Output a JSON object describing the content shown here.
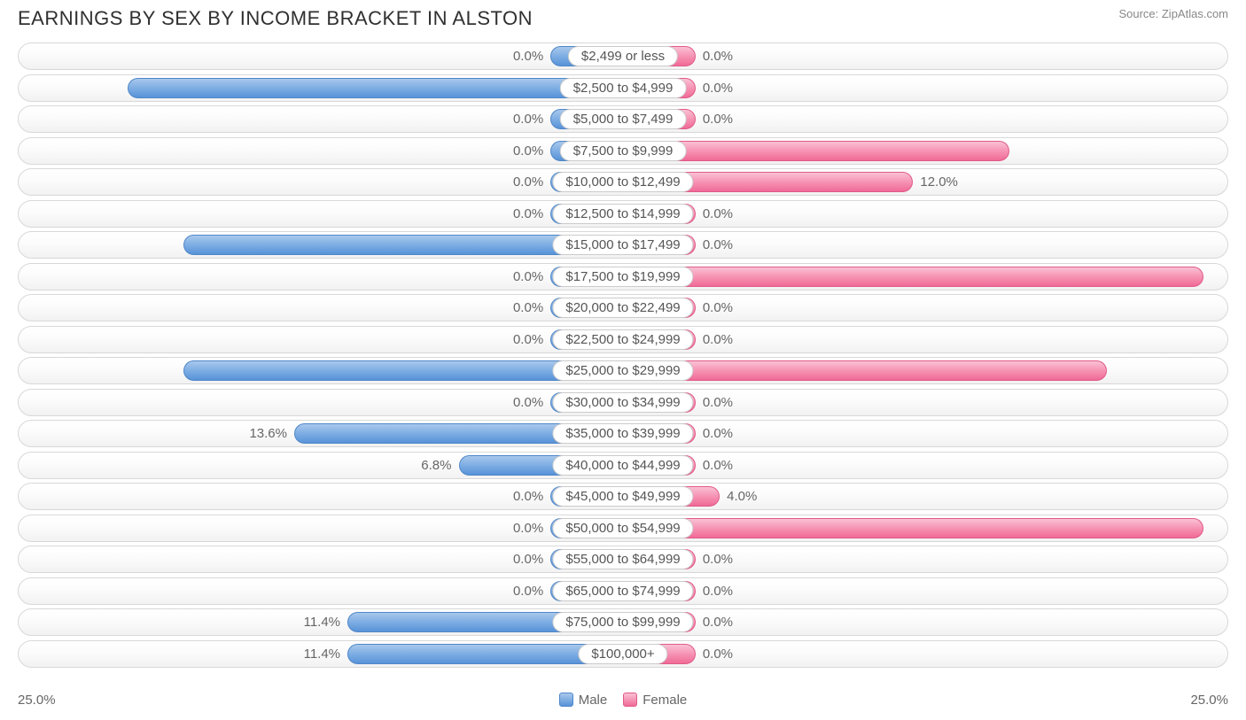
{
  "title": "EARNINGS BY SEX BY INCOME BRACKET IN ALSTON",
  "source": "Source: ZipAtlas.com",
  "axis_max": 25.0,
  "axis_max_label": "25.0%",
  "min_bar_percent": 3.0,
  "inside_threshold": 14.0,
  "colors": {
    "male_gradient": [
      "#a9c8ec",
      "#7dade3",
      "#5893d8"
    ],
    "male_border": "#4f87c8",
    "female_gradient": [
      "#fac1d4",
      "#f693b3",
      "#f06a97"
    ],
    "female_border": "#e05a88",
    "track_border": "#d8d8d8",
    "track_bg_top": "#ffffff",
    "track_bg_bottom": "#f2f2f2",
    "text": "#666666",
    "title_text": "#303030",
    "inside_text": "#ffffff"
  },
  "legend": [
    {
      "key": "male",
      "label": "Male"
    },
    {
      "key": "female",
      "label": "Female"
    }
  ],
  "rows": [
    {
      "category": "$2,499 or less",
      "male": 0.0,
      "female": 0.0
    },
    {
      "category": "$2,500 to $4,999",
      "male": 20.5,
      "female": 0.0
    },
    {
      "category": "$5,000 to $7,499",
      "male": 0.0,
      "female": 0.0
    },
    {
      "category": "$7,500 to $9,999",
      "male": 0.0,
      "female": 16.0
    },
    {
      "category": "$10,000 to $12,499",
      "male": 0.0,
      "female": 12.0
    },
    {
      "category": "$12,500 to $14,999",
      "male": 0.0,
      "female": 0.0
    },
    {
      "category": "$15,000 to $17,499",
      "male": 18.2,
      "female": 0.0
    },
    {
      "category": "$17,500 to $19,999",
      "male": 0.0,
      "female": 24.0
    },
    {
      "category": "$20,000 to $22,499",
      "male": 0.0,
      "female": 0.0
    },
    {
      "category": "$22,500 to $24,999",
      "male": 0.0,
      "female": 0.0
    },
    {
      "category": "$25,000 to $29,999",
      "male": 18.2,
      "female": 20.0
    },
    {
      "category": "$30,000 to $34,999",
      "male": 0.0,
      "female": 0.0
    },
    {
      "category": "$35,000 to $39,999",
      "male": 13.6,
      "female": 0.0
    },
    {
      "category": "$40,000 to $44,999",
      "male": 6.8,
      "female": 0.0
    },
    {
      "category": "$45,000 to $49,999",
      "male": 0.0,
      "female": 4.0
    },
    {
      "category": "$50,000 to $54,999",
      "male": 0.0,
      "female": 24.0
    },
    {
      "category": "$55,000 to $64,999",
      "male": 0.0,
      "female": 0.0
    },
    {
      "category": "$65,000 to $74,999",
      "male": 0.0,
      "female": 0.0
    },
    {
      "category": "$75,000 to $99,999",
      "male": 11.4,
      "female": 0.0
    },
    {
      "category": "$100,000+",
      "male": 11.4,
      "female": 0.0
    }
  ]
}
